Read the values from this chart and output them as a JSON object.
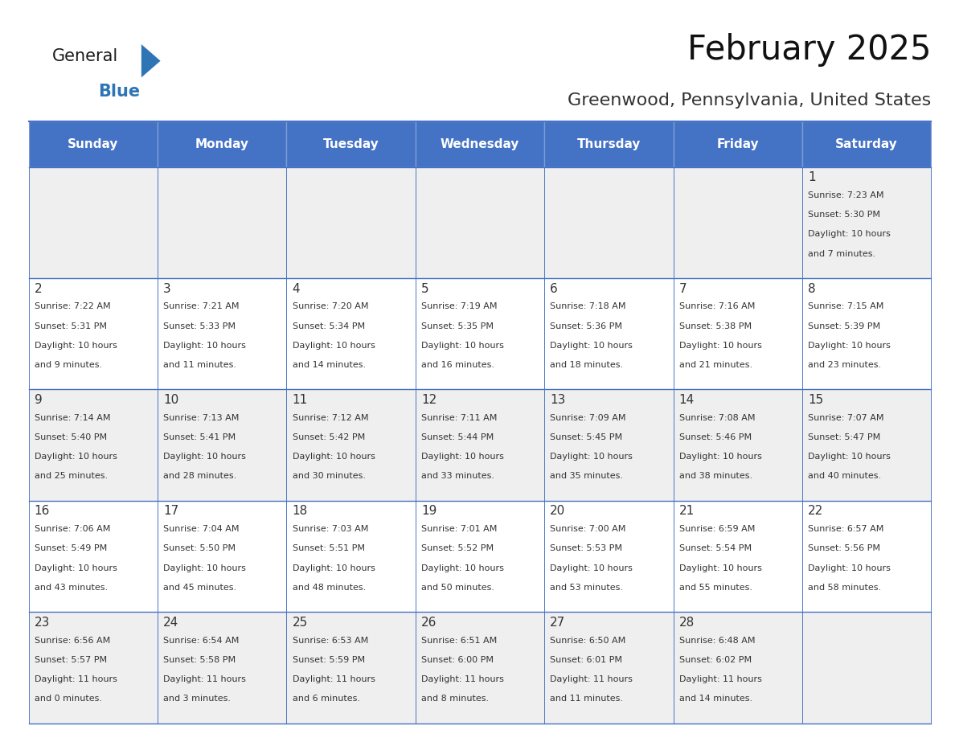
{
  "title": "February 2025",
  "subtitle": "Greenwood, Pennsylvania, United States",
  "days_of_week": [
    "Sunday",
    "Monday",
    "Tuesday",
    "Wednesday",
    "Thursday",
    "Friday",
    "Saturday"
  ],
  "header_bg": "#4472C4",
  "header_text": "#FFFFFF",
  "cell_bg_odd": "#EFEFEF",
  "cell_bg_even": "#FFFFFF",
  "border_color": "#4472C4",
  "day_number_color": "#333333",
  "cell_text_color": "#333333",
  "title_color": "#111111",
  "subtitle_color": "#333333",
  "logo_black": "#1a1a1a",
  "logo_blue": "#2E75B6",
  "weeks": [
    [
      {
        "day": null,
        "sunrise": null,
        "sunset": null,
        "daylight": null
      },
      {
        "day": null,
        "sunrise": null,
        "sunset": null,
        "daylight": null
      },
      {
        "day": null,
        "sunrise": null,
        "sunset": null,
        "daylight": null
      },
      {
        "day": null,
        "sunrise": null,
        "sunset": null,
        "daylight": null
      },
      {
        "day": null,
        "sunrise": null,
        "sunset": null,
        "daylight": null
      },
      {
        "day": null,
        "sunrise": null,
        "sunset": null,
        "daylight": null
      },
      {
        "day": 1,
        "sunrise": "7:23 AM",
        "sunset": "5:30 PM",
        "daylight_line1": "Daylight: 10 hours",
        "daylight_line2": "and 7 minutes."
      }
    ],
    [
      {
        "day": 2,
        "sunrise": "7:22 AM",
        "sunset": "5:31 PM",
        "daylight_line1": "Daylight: 10 hours",
        "daylight_line2": "and 9 minutes."
      },
      {
        "day": 3,
        "sunrise": "7:21 AM",
        "sunset": "5:33 PM",
        "daylight_line1": "Daylight: 10 hours",
        "daylight_line2": "and 11 minutes."
      },
      {
        "day": 4,
        "sunrise": "7:20 AM",
        "sunset": "5:34 PM",
        "daylight_line1": "Daylight: 10 hours",
        "daylight_line2": "and 14 minutes."
      },
      {
        "day": 5,
        "sunrise": "7:19 AM",
        "sunset": "5:35 PM",
        "daylight_line1": "Daylight: 10 hours",
        "daylight_line2": "and 16 minutes."
      },
      {
        "day": 6,
        "sunrise": "7:18 AM",
        "sunset": "5:36 PM",
        "daylight_line1": "Daylight: 10 hours",
        "daylight_line2": "and 18 minutes."
      },
      {
        "day": 7,
        "sunrise": "7:16 AM",
        "sunset": "5:38 PM",
        "daylight_line1": "Daylight: 10 hours",
        "daylight_line2": "and 21 minutes."
      },
      {
        "day": 8,
        "sunrise": "7:15 AM",
        "sunset": "5:39 PM",
        "daylight_line1": "Daylight: 10 hours",
        "daylight_line2": "and 23 minutes."
      }
    ],
    [
      {
        "day": 9,
        "sunrise": "7:14 AM",
        "sunset": "5:40 PM",
        "daylight_line1": "Daylight: 10 hours",
        "daylight_line2": "and 25 minutes."
      },
      {
        "day": 10,
        "sunrise": "7:13 AM",
        "sunset": "5:41 PM",
        "daylight_line1": "Daylight: 10 hours",
        "daylight_line2": "and 28 minutes."
      },
      {
        "day": 11,
        "sunrise": "7:12 AM",
        "sunset": "5:42 PM",
        "daylight_line1": "Daylight: 10 hours",
        "daylight_line2": "and 30 minutes."
      },
      {
        "day": 12,
        "sunrise": "7:11 AM",
        "sunset": "5:44 PM",
        "daylight_line1": "Daylight: 10 hours",
        "daylight_line2": "and 33 minutes."
      },
      {
        "day": 13,
        "sunrise": "7:09 AM",
        "sunset": "5:45 PM",
        "daylight_line1": "Daylight: 10 hours",
        "daylight_line2": "and 35 minutes."
      },
      {
        "day": 14,
        "sunrise": "7:08 AM",
        "sunset": "5:46 PM",
        "daylight_line1": "Daylight: 10 hours",
        "daylight_line2": "and 38 minutes."
      },
      {
        "day": 15,
        "sunrise": "7:07 AM",
        "sunset": "5:47 PM",
        "daylight_line1": "Daylight: 10 hours",
        "daylight_line2": "and 40 minutes."
      }
    ],
    [
      {
        "day": 16,
        "sunrise": "7:06 AM",
        "sunset": "5:49 PM",
        "daylight_line1": "Daylight: 10 hours",
        "daylight_line2": "and 43 minutes."
      },
      {
        "day": 17,
        "sunrise": "7:04 AM",
        "sunset": "5:50 PM",
        "daylight_line1": "Daylight: 10 hours",
        "daylight_line2": "and 45 minutes."
      },
      {
        "day": 18,
        "sunrise": "7:03 AM",
        "sunset": "5:51 PM",
        "daylight_line1": "Daylight: 10 hours",
        "daylight_line2": "and 48 minutes."
      },
      {
        "day": 19,
        "sunrise": "7:01 AM",
        "sunset": "5:52 PM",
        "daylight_line1": "Daylight: 10 hours",
        "daylight_line2": "and 50 minutes."
      },
      {
        "day": 20,
        "sunrise": "7:00 AM",
        "sunset": "5:53 PM",
        "daylight_line1": "Daylight: 10 hours",
        "daylight_line2": "and 53 minutes."
      },
      {
        "day": 21,
        "sunrise": "6:59 AM",
        "sunset": "5:54 PM",
        "daylight_line1": "Daylight: 10 hours",
        "daylight_line2": "and 55 minutes."
      },
      {
        "day": 22,
        "sunrise": "6:57 AM",
        "sunset": "5:56 PM",
        "daylight_line1": "Daylight: 10 hours",
        "daylight_line2": "and 58 minutes."
      }
    ],
    [
      {
        "day": 23,
        "sunrise": "6:56 AM",
        "sunset": "5:57 PM",
        "daylight_line1": "Daylight: 11 hours",
        "daylight_line2": "and 0 minutes."
      },
      {
        "day": 24,
        "sunrise": "6:54 AM",
        "sunset": "5:58 PM",
        "daylight_line1": "Daylight: 11 hours",
        "daylight_line2": "and 3 minutes."
      },
      {
        "day": 25,
        "sunrise": "6:53 AM",
        "sunset": "5:59 PM",
        "daylight_line1": "Daylight: 11 hours",
        "daylight_line2": "and 6 minutes."
      },
      {
        "day": 26,
        "sunrise": "6:51 AM",
        "sunset": "6:00 PM",
        "daylight_line1": "Daylight: 11 hours",
        "daylight_line2": "and 8 minutes."
      },
      {
        "day": 27,
        "sunrise": "6:50 AM",
        "sunset": "6:01 PM",
        "daylight_line1": "Daylight: 11 hours",
        "daylight_line2": "and 11 minutes."
      },
      {
        "day": 28,
        "sunrise": "6:48 AM",
        "sunset": "6:02 PM",
        "daylight_line1": "Daylight: 11 hours",
        "daylight_line2": "and 14 minutes."
      },
      {
        "day": null,
        "sunrise": null,
        "sunset": null,
        "daylight_line1": null,
        "daylight_line2": null
      }
    ]
  ]
}
